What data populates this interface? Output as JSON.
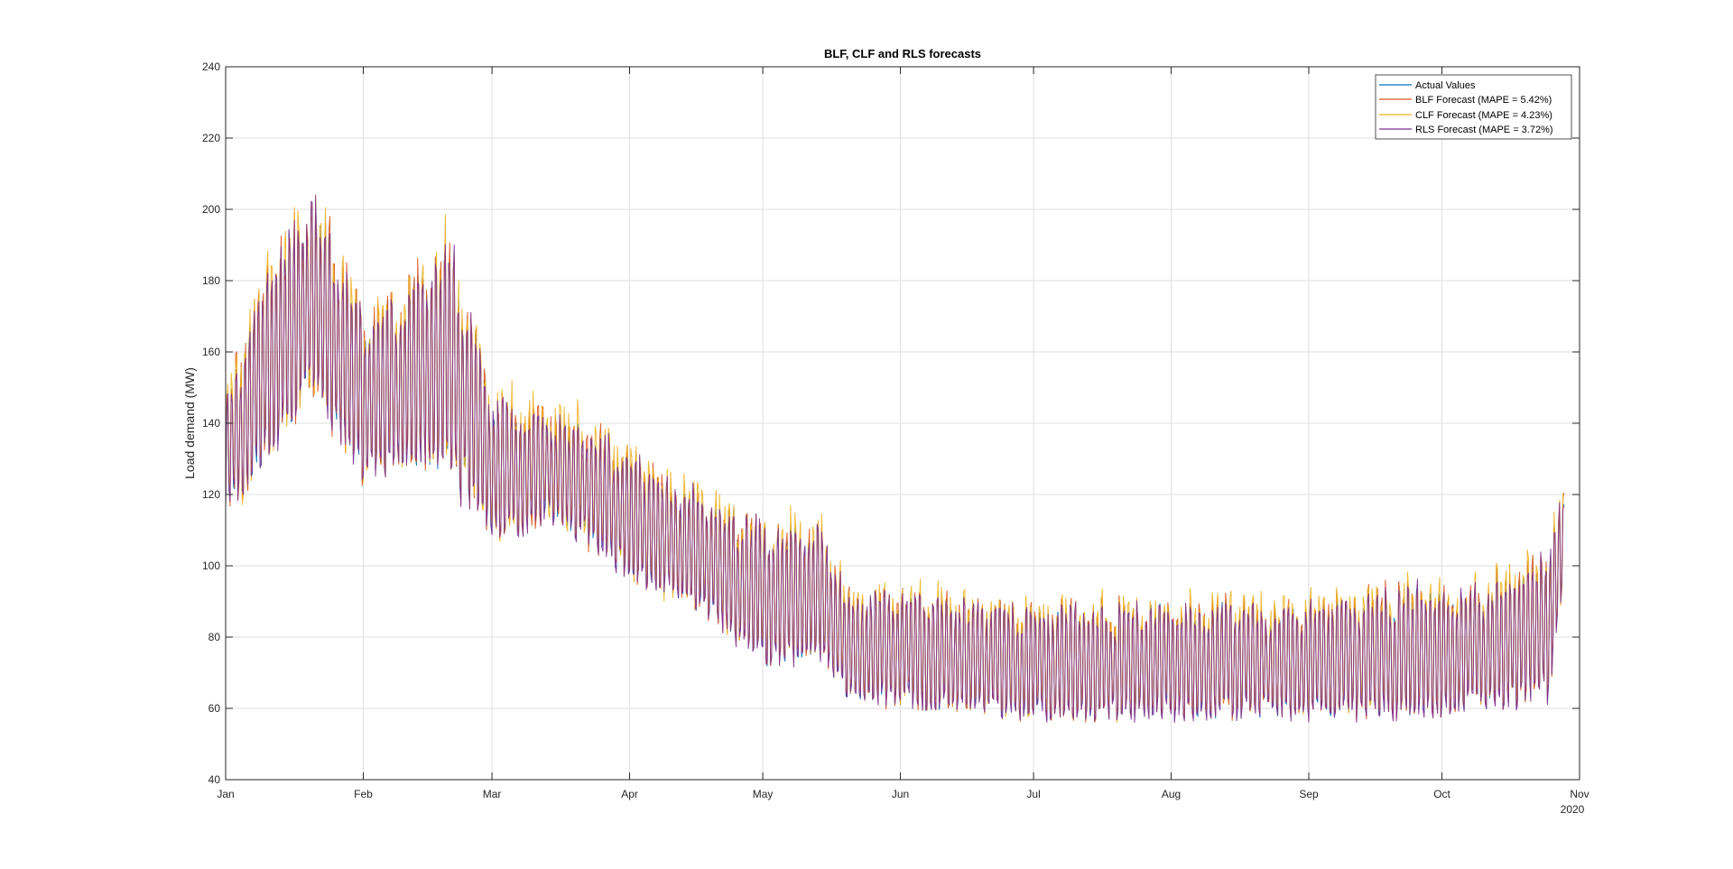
{
  "chart_data": {
    "type": "line",
    "title": "BLF, CLF and RLS forecasts",
    "xlabel": "",
    "ylabel": "Load demand (MW)",
    "x_year_label": "2020",
    "xlim": [
      "2020-01-01",
      "2020-11-01"
    ],
    "ylim": [
      40,
      240
    ],
    "yticks": [
      40,
      60,
      80,
      100,
      120,
      140,
      160,
      180,
      200,
      220,
      240
    ],
    "xticks": [
      {
        "date": "2020-01-01",
        "label": "Jan"
      },
      {
        "date": "2020-02-01",
        "label": "Feb"
      },
      {
        "date": "2020-03-01",
        "label": "Mar"
      },
      {
        "date": "2020-04-01",
        "label": "Apr"
      },
      {
        "date": "2020-05-01",
        "label": "May"
      },
      {
        "date": "2020-06-01",
        "label": "Jun"
      },
      {
        "date": "2020-07-01",
        "label": "Jul"
      },
      {
        "date": "2020-08-01",
        "label": "Aug"
      },
      {
        "date": "2020-09-01",
        "label": "Sep"
      },
      {
        "date": "2020-10-01",
        "label": "Oct"
      },
      {
        "date": "2020-11-01",
        "label": "Nov"
      }
    ],
    "grid": true,
    "legend_position": "top-right",
    "daily_range_note_source": "visual estimate",
    "daily_envelope": {
      "dates": [
        "2020-01-01",
        "2020-01-10",
        "2020-01-20",
        "2020-02-01",
        "2020-02-10",
        "2020-02-20",
        "2020-03-01",
        "2020-03-15",
        "2020-04-01",
        "2020-04-15",
        "2020-05-01",
        "2020-05-14",
        "2020-05-20",
        "2020-06-01",
        "2020-07-01",
        "2020-08-01",
        "2020-09-01",
        "2020-09-25",
        "2020-10-01",
        "2020-10-15",
        "2020-10-25",
        "2020-10-28"
      ],
      "peak": [
        150,
        185,
        210,
        175,
        180,
        200,
        150,
        145,
        135,
        125,
        115,
        115,
        95,
        95,
        92,
        92,
        92,
        98,
        95,
        100,
        110,
        120
      ],
      "trough": [
        110,
        125,
        145,
        120,
        125,
        120,
        105,
        110,
        95,
        85,
        70,
        70,
        60,
        58,
        55,
        55,
        55,
        55,
        55,
        58,
        60,
        90
      ]
    },
    "series": [
      {
        "name": "Actual Values",
        "color": "#0072BD"
      },
      {
        "name": "BLF Forecast (MAPE = 5.42%)",
        "color": "#D95319"
      },
      {
        "name": "CLF Forecast (MAPE = 4.23%)",
        "color": "#EDB120"
      },
      {
        "name": "RLS Forecast (MAPE = 3.72%)",
        "color": "#7E2F8E"
      }
    ]
  }
}
